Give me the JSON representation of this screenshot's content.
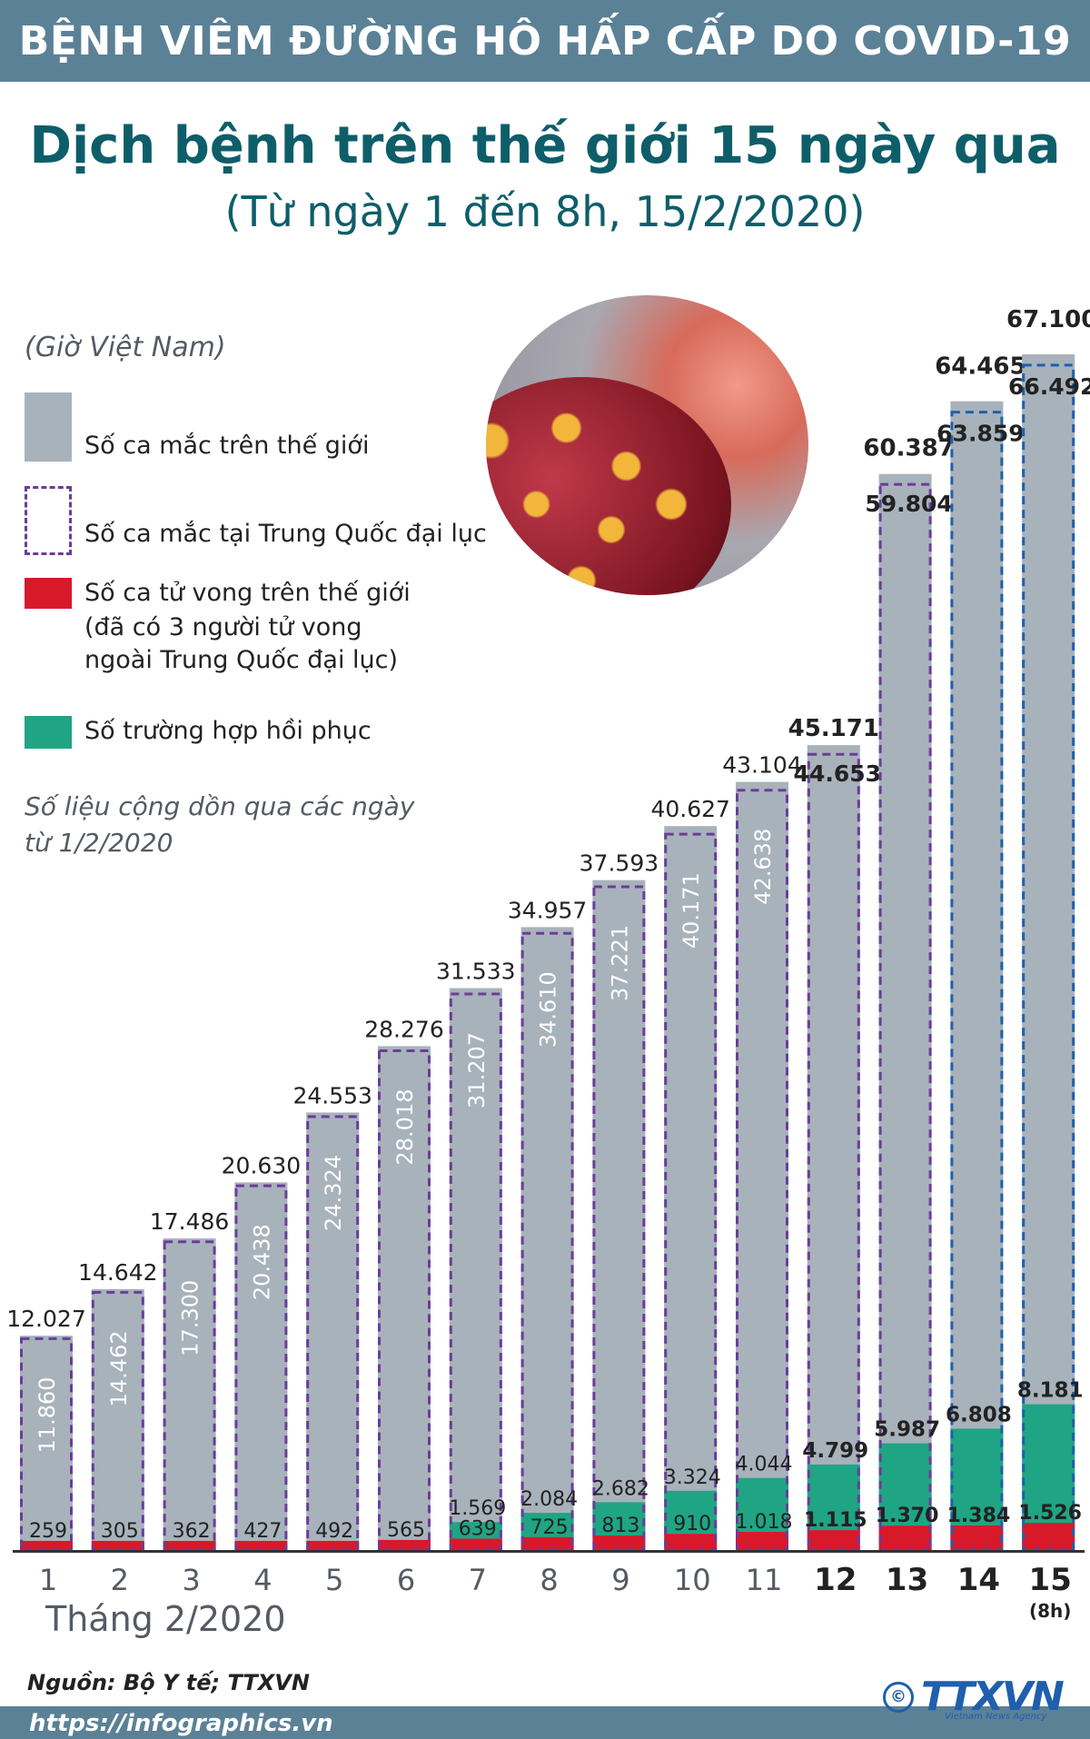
{
  "header": {
    "banner": "BỆNH VIÊM ĐƯỜNG HÔ HẤP CẤP DO COVID-19",
    "title": "Dịch bệnh trên thế giới 15 ngày qua",
    "subtitle": "(Từ ngày 1 đến 8h, 15/2/2020)"
  },
  "legend": {
    "timezone_note": "(Giờ Việt Nam)",
    "items": [
      {
        "label": "Số ca mắc trên thế giới",
        "color": "#a8b2bb"
      },
      {
        "label": "Số ca mắc tại Trung Quốc đại lục",
        "color": "#6a3d9a"
      },
      {
        "label_lines": [
          "Số ca tử vong trên thế giới",
          "(đã có 3 người tử vong",
          "ngoài Trung Quốc đại lục)"
        ],
        "color": "#d7192a"
      },
      {
        "label": "Số trường hợp hồi phục",
        "color": "#1fa583"
      }
    ],
    "note_lines": [
      "Số liệu cộng dồn qua các ngày",
      "từ 1/2/2020"
    ]
  },
  "chart_data": {
    "type": "bar",
    "categories": [
      "1",
      "2",
      "3",
      "4",
      "5",
      "6",
      "7",
      "8",
      "9",
      "10",
      "11",
      "12",
      "13",
      "14",
      "15"
    ],
    "last_category_note": "(8h)",
    "month_label": "Tháng 2/2020",
    "series": [
      {
        "name": "Số ca mắc trên thế giới",
        "color": "#a8b2bb",
        "labels": [
          "12.027",
          "14.642",
          "17.486",
          "20.630",
          "24.553",
          "28.276",
          "31.533",
          "34.957",
          "37.593",
          "40.627",
          "43.104",
          "45.171",
          "60.387",
          "64.465",
          "67.100"
        ],
        "values": [
          12027,
          14642,
          17486,
          20630,
          24553,
          28276,
          31533,
          34957,
          37593,
          40627,
          43104,
          45171,
          60387,
          64465,
          67100
        ]
      },
      {
        "name": "Số ca mắc tại Trung Quốc đại lục",
        "color": "#6a3d9a",
        "labels": [
          "11.860",
          "14.462",
          "17.300",
          "20.438",
          "24.324",
          "28.018",
          "31.207",
          "34.610",
          "37.221",
          "40.171",
          "42.638",
          "44.653",
          "59.804",
          "63.859",
          "66.492"
        ],
        "values": [
          11860,
          14462,
          17300,
          20438,
          24324,
          28018,
          31207,
          34610,
          37221,
          40171,
          42638,
          44653,
          59804,
          63859,
          66492
        ]
      },
      {
        "name": "Số ca tử vong trên thế giới",
        "color": "#d7192a",
        "labels": [
          "259",
          "305",
          "362",
          "427",
          "492",
          "565",
          "639",
          "725",
          "813",
          "910",
          "1.018",
          "1.115",
          "1.370",
          "1.384",
          "1.526"
        ],
        "values": [
          259,
          305,
          362,
          427,
          492,
          565,
          639,
          725,
          813,
          910,
          1018,
          1115,
          1370,
          1384,
          1526
        ]
      },
      {
        "name": "Số trường hợp hồi phục",
        "color": "#1fa583",
        "labels": [
          "",
          "",
          "",
          "",
          "",
          "",
          "1.569",
          "2.084",
          "2.682",
          "3.324",
          "4.044",
          "4.799",
          "5.987",
          "6.808",
          "8.181"
        ],
        "values": [
          null,
          null,
          null,
          null,
          null,
          null,
          1569,
          2084,
          2682,
          3324,
          4044,
          4799,
          5987,
          6808,
          8181
        ]
      }
    ],
    "ylim": [
      0,
      67100
    ]
  },
  "footer": {
    "source": "Nguồn: Bộ Y tế; TTXVN",
    "url": "https://infographics.vn",
    "logo": "TTXVN",
    "logo_sub": "Vietnam News Agency",
    "copyright_symbol": "©"
  }
}
